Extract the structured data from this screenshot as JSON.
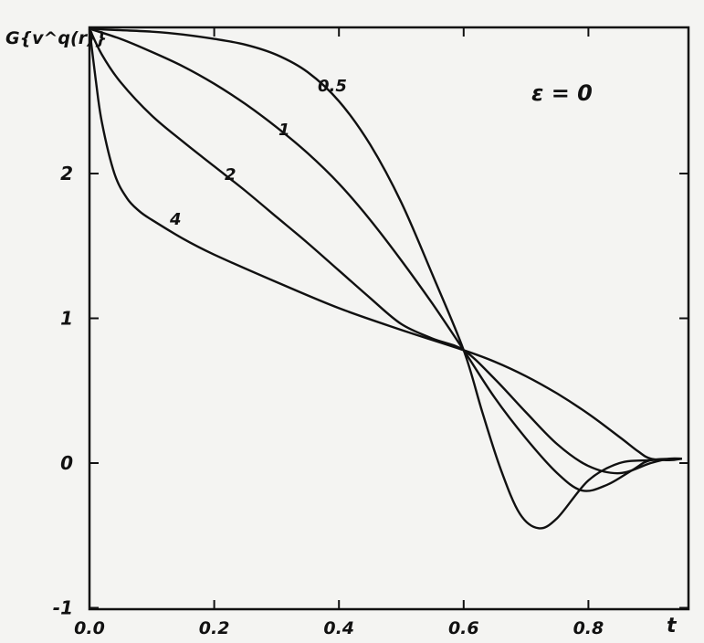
{
  "chart_data": {
    "type": "line",
    "title": "",
    "xlabel": "t",
    "ylabel": "G{v^q(r)}",
    "xlim": [
      0.0,
      0.95
    ],
    "ylim": [
      -1,
      3
    ],
    "xticks": [
      "0.0",
      "0.2",
      "0.4",
      "0.6",
      "0.8"
    ],
    "yticks": [
      "-1",
      "0",
      "1",
      "2"
    ],
    "annotation": "ε = 0",
    "grid": false,
    "series": [
      {
        "name": "0.5",
        "x": [
          0.0,
          0.05,
          0.1,
          0.15,
          0.2,
          0.25,
          0.3,
          0.35,
          0.4,
          0.45,
          0.5,
          0.55,
          0.6,
          0.63,
          0.66,
          0.69,
          0.72,
          0.75,
          0.8,
          0.85,
          0.9,
          0.95
        ],
        "y": [
          3.0,
          2.99,
          2.98,
          2.96,
          2.93,
          2.89,
          2.82,
          2.7,
          2.5,
          2.2,
          1.8,
          1.3,
          0.78,
          0.35,
          -0.05,
          -0.35,
          -0.45,
          -0.38,
          -0.12,
          0.0,
          0.02,
          0.03
        ]
      },
      {
        "name": "1",
        "x": [
          0.0,
          0.05,
          0.1,
          0.15,
          0.2,
          0.25,
          0.3,
          0.35,
          0.4,
          0.45,
          0.5,
          0.55,
          0.6,
          0.65,
          0.7,
          0.75,
          0.79,
          0.83,
          0.87,
          0.9,
          0.95
        ],
        "y": [
          3.0,
          2.93,
          2.84,
          2.74,
          2.62,
          2.48,
          2.32,
          2.14,
          1.93,
          1.68,
          1.4,
          1.1,
          0.78,
          0.45,
          0.17,
          -0.07,
          -0.19,
          -0.15,
          -0.05,
          0.02,
          0.03
        ]
      },
      {
        "name": "2",
        "x": [
          0.0,
          0.02,
          0.05,
          0.1,
          0.15,
          0.2,
          0.25,
          0.3,
          0.35,
          0.4,
          0.45,
          0.5,
          0.55,
          0.6,
          0.65,
          0.7,
          0.75,
          0.8,
          0.85,
          0.9,
          0.93,
          0.95
        ],
        "y": [
          3.0,
          2.82,
          2.63,
          2.4,
          2.22,
          2.05,
          1.88,
          1.7,
          1.52,
          1.33,
          1.14,
          0.96,
          0.86,
          0.78,
          0.58,
          0.35,
          0.13,
          -0.02,
          -0.07,
          0.0,
          0.03,
          0.03
        ]
      },
      {
        "name": "4",
        "x": [
          0.0,
          0.01,
          0.02,
          0.04,
          0.06,
          0.08,
          0.1,
          0.15,
          0.2,
          0.3,
          0.4,
          0.5,
          0.6,
          0.65,
          0.7,
          0.75,
          0.8,
          0.85,
          0.88,
          0.9,
          0.93,
          0.95
        ],
        "y": [
          3.0,
          2.65,
          2.35,
          2.0,
          1.83,
          1.74,
          1.68,
          1.55,
          1.44,
          1.25,
          1.07,
          0.92,
          0.78,
          0.7,
          0.6,
          0.48,
          0.34,
          0.18,
          0.08,
          0.03,
          0.02,
          0.03
        ]
      }
    ]
  }
}
